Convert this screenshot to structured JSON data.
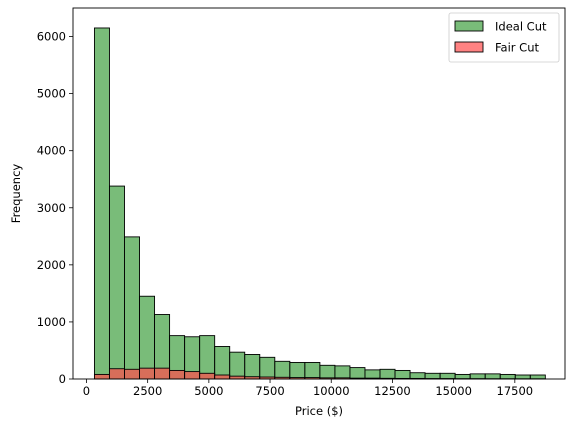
{
  "chart_data": {
    "type": "bar",
    "title": "",
    "xlabel": "Price ($)",
    "ylabel": "Frequency",
    "xlim": [
      -550,
      19550
    ],
    "ylim": [
      0,
      6500
    ],
    "x_ticks": [
      0,
      2500,
      5000,
      7500,
      10000,
      12500,
      15000,
      17500
    ],
    "x_tick_labels": [
      "0",
      "2500",
      "5000",
      "7500",
      "10000",
      "12500",
      "15000",
      "17500"
    ],
    "y_ticks": [
      0,
      1000,
      2000,
      3000,
      4000,
      5000,
      6000
    ],
    "y_tick_labels": [
      "0",
      "1000",
      "2000",
      "3000",
      "4000",
      "5000",
      "6000"
    ],
    "grid": false,
    "legend_position": "top-right",
    "bin_edges": [
      326,
      940,
      1554,
      2168,
      2782,
      3396,
      4010,
      4624,
      5238,
      5852,
      6466,
      7080,
      7694,
      8308,
      8922,
      9536,
      10150,
      10764,
      11378,
      11992,
      12606,
      13220,
      13834,
      14448,
      15062,
      15676,
      16290,
      16904,
      17518,
      18132,
      18746
    ],
    "series": [
      {
        "name": "Ideal Cut",
        "color": "#4ca64c",
        "alpha": 0.75,
        "edgecolor": "#000000",
        "values": [
          6150,
          3380,
          2490,
          1450,
          1130,
          760,
          740,
          760,
          570,
          470,
          430,
          380,
          310,
          290,
          290,
          240,
          230,
          200,
          160,
          170,
          150,
          110,
          100,
          100,
          80,
          90,
          90,
          80,
          70,
          70
        ]
      },
      {
        "name": "Fair Cut",
        "color": "#ff4d4d",
        "alpha": 0.7,
        "edgecolor": "#000000",
        "values": [
          80,
          180,
          170,
          190,
          190,
          150,
          130,
          100,
          70,
          50,
          40,
          35,
          30,
          25,
          25,
          20,
          20,
          15,
          15,
          12,
          10,
          10,
          8,
          8,
          6,
          6,
          5,
          5,
          4,
          4
        ]
      }
    ]
  }
}
